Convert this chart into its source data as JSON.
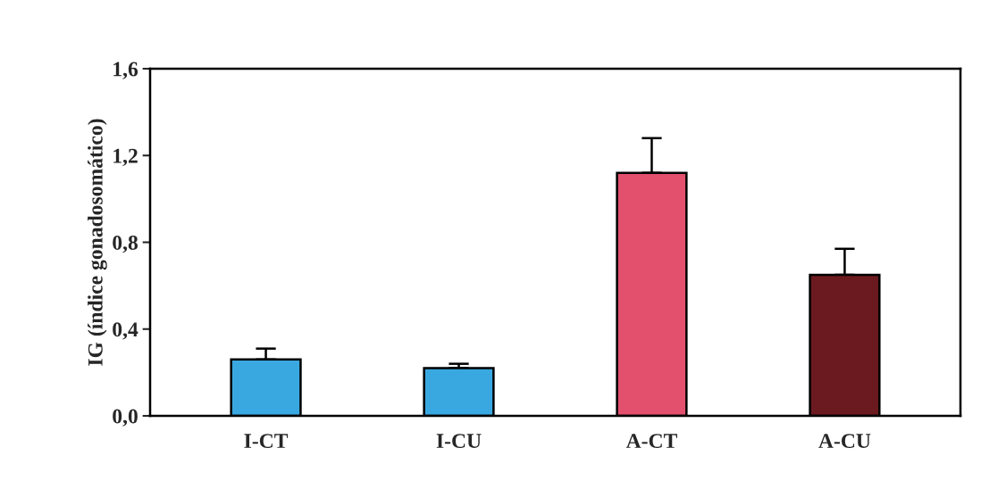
{
  "chart_data": {
    "type": "bar",
    "ylabel": "IG (índice gonadosomático)",
    "categories": [
      "I-CT",
      "I-CU",
      "A-CT",
      "A-CU"
    ],
    "values": [
      0.26,
      0.22,
      1.12,
      0.65
    ],
    "errors": [
      [
        0.26,
        0.31
      ],
      [
        0.22,
        0.24
      ],
      [
        1.12,
        1.28
      ],
      [
        0.65,
        0.77
      ]
    ],
    "colors": [
      "#3aa8e0",
      "#3aa8e0",
      "#e2506e",
      "#6b1a1f"
    ],
    "ylim": [
      0,
      1.6
    ],
    "yticks": [
      {
        "value": 0,
        "label": "0,0"
      },
      {
        "value": 0.4,
        "label": "0,4"
      },
      {
        "value": 0.8,
        "label": "0,8"
      },
      {
        "value": 1.2,
        "label": "1,2"
      },
      {
        "value": 1.6,
        "label": "1,6"
      }
    ],
    "grid": false
  }
}
